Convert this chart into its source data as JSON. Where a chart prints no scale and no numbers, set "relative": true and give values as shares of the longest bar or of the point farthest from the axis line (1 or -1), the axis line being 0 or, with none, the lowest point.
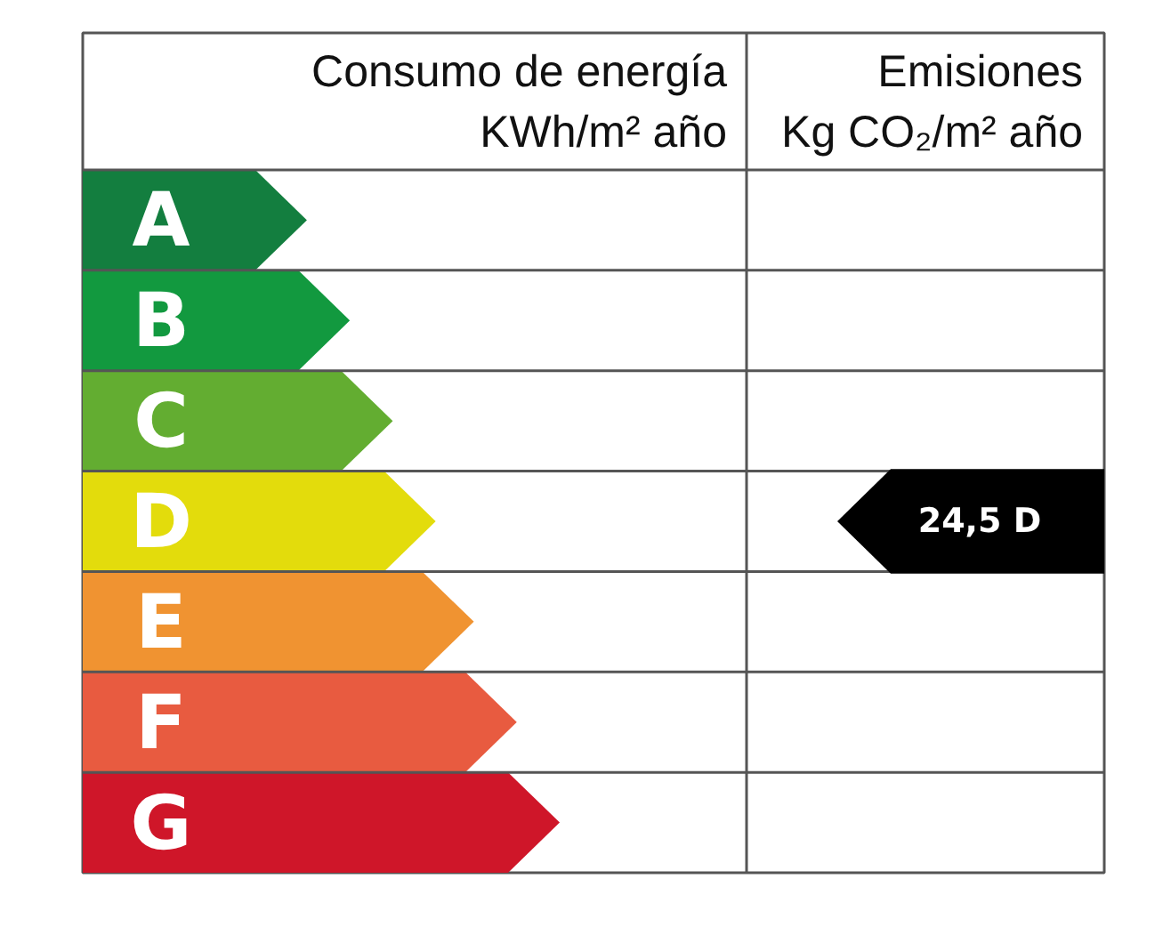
{
  "chart_data": {
    "type": "bar",
    "orientation": "horizontal",
    "relative": true,
    "categories": [
      "A",
      "B",
      "C",
      "D",
      "E",
      "F",
      "G"
    ],
    "values": [
      0.47,
      0.56,
      0.65,
      0.74,
      0.82,
      0.91,
      1
    ],
    "colors": [
      "#137e3f",
      "#12993f",
      "#63ad31",
      "#e3dc0c",
      "#f09331",
      "#e85b40",
      "#cf1629"
    ],
    "xlabel": "Consumo de energía\nKWh/m² año",
    "annotations": [
      "Emisiones\nKg CO₂/m² año",
      "24,5 D"
    ]
  }
}
